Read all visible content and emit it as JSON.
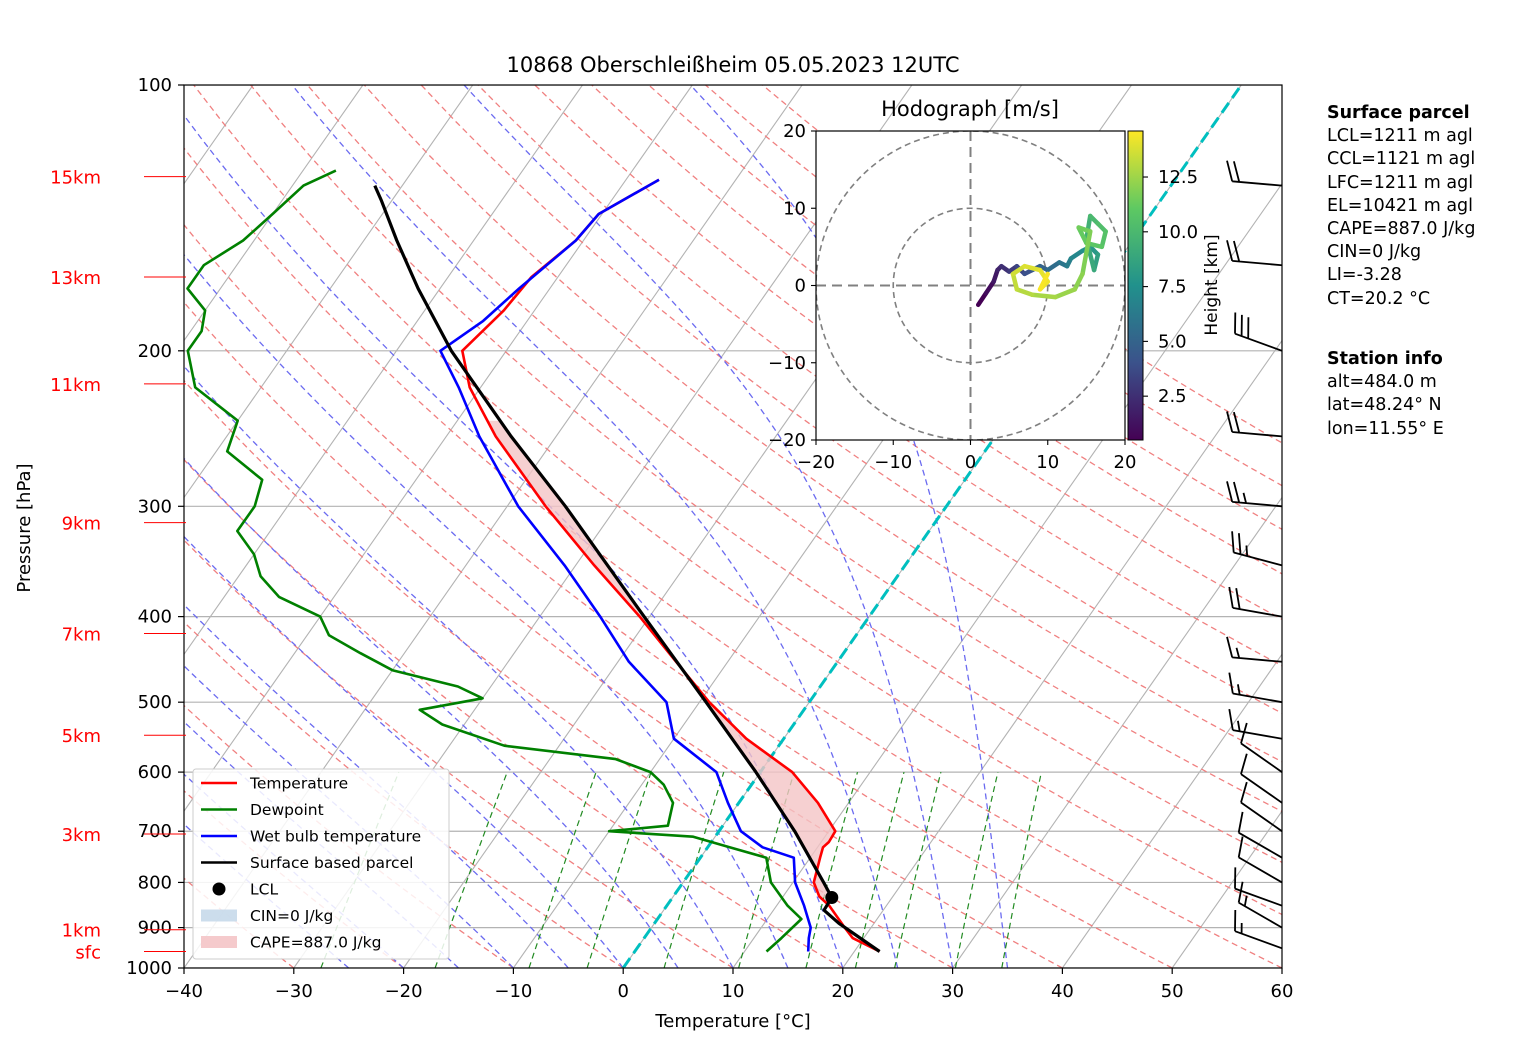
{
  "title": "10868 Oberschleißheim 05.05.2023 12UTC",
  "colors": {
    "temperature": "#ff0000",
    "dewpoint": "#008000",
    "wetbulb": "#0000ff",
    "parcel": "#000000",
    "dry_adiabat": "#f08080",
    "moist_adiabat": "#6b6bf0",
    "mixing_ratio": "#228b22",
    "freezing_isotherm": "#00bfbf",
    "cape_fill": "#f4c4c6",
    "cin_fill": "#c6d9ea",
    "height_label": "#ff0000"
  },
  "chart_data": {
    "type": "line",
    "subtype": "skew-t log-p",
    "xlabel": "Temperature [°C]",
    "ylabel": "Pressure [hPa]",
    "xlim": [
      -40,
      60
    ],
    "ylim": [
      1000,
      100
    ],
    "y_scale": "log",
    "x_ticks": [
      "−40",
      "−30",
      "−20",
      "−10",
      "0",
      "10",
      "20",
      "30",
      "40",
      "50",
      "60"
    ],
    "y_ticks": [
      "100",
      "200",
      "300",
      "400",
      "500",
      "600",
      "700",
      "800",
      "900",
      "1000"
    ],
    "height_labels": [
      {
        "label": "15km",
        "p": 127
      },
      {
        "label": "13km",
        "p": 165
      },
      {
        "label": "11km",
        "p": 218
      },
      {
        "label": "9km",
        "p": 313
      },
      {
        "label": "7km",
        "p": 418
      },
      {
        "label": "5km",
        "p": 545
      },
      {
        "label": "3km",
        "p": 705
      },
      {
        "label": "1km",
        "p": 905
      },
      {
        "label": "sfc",
        "p": 958
      }
    ],
    "legend": {
      "position": "bottom-left",
      "entries": [
        "Temperature",
        "Dewpoint",
        "Wet bulb temperature",
        "Surface based parcel",
        "LCL",
        "CIN=0 J/kg",
        "CAPE=887.0 J/kg"
      ]
    },
    "series": [
      {
        "name": "Temperature",
        "points": [
          [
            958,
            22.3
          ],
          [
            925,
            19.0
          ],
          [
            900,
            17.6
          ],
          [
            850,
            14.8
          ],
          [
            830,
            13.3
          ],
          [
            800,
            11.9
          ],
          [
            750,
            10.9
          ],
          [
            730,
            10.5
          ],
          [
            720,
            10.7
          ],
          [
            700,
            10.6
          ],
          [
            650,
            7.2
          ],
          [
            600,
            2.9
          ],
          [
            550,
            -3.4
          ],
          [
            500,
            -9.1
          ],
          [
            450,
            -14.7
          ],
          [
            400,
            -20.9
          ],
          [
            350,
            -28.3
          ],
          [
            300,
            -36.5
          ],
          [
            250,
            -45.5
          ],
          [
            220,
            -51.0
          ],
          [
            200,
            -54.0
          ],
          [
            180,
            -52.8
          ],
          [
            165,
            -52.4
          ],
          [
            150,
            -50.7
          ],
          [
            140,
            -50.3
          ],
          [
            128,
            -47.0
          ]
        ]
      },
      {
        "name": "Dewpoint",
        "points": [
          [
            958,
            12.0
          ],
          [
            925,
            12.5
          ],
          [
            880,
            13.1
          ],
          [
            850,
            11.0
          ],
          [
            800,
            8.0
          ],
          [
            750,
            6.0
          ],
          [
            730,
            2.0
          ],
          [
            710,
            -2.0
          ],
          [
            700,
            -10.0
          ],
          [
            690,
            -5.0
          ],
          [
            650,
            -6.0
          ],
          [
            620,
            -8.0
          ],
          [
            600,
            -10.0
          ],
          [
            580,
            -14.0
          ],
          [
            560,
            -25.0
          ],
          [
            530,
            -32.0
          ],
          [
            510,
            -35.0
          ],
          [
            495,
            -30.0
          ],
          [
            480,
            -33.0
          ],
          [
            460,
            -40.0
          ],
          [
            440,
            -44.0
          ],
          [
            420,
            -48.0
          ],
          [
            400,
            -50.0
          ],
          [
            380,
            -55.0
          ],
          [
            360,
            -58.0
          ],
          [
            340,
            -60.0
          ],
          [
            320,
            -63.0
          ],
          [
            300,
            -63.0
          ],
          [
            280,
            -64.0
          ],
          [
            260,
            -69.0
          ],
          [
            240,
            -70.0
          ],
          [
            220,
            -76.0
          ],
          [
            200,
            -79.0
          ],
          [
            190,
            -79.0
          ],
          [
            180,
            -80.0
          ],
          [
            170,
            -83.0
          ],
          [
            160,
            -83.0
          ],
          [
            150,
            -81.0
          ],
          [
            140,
            -80.0
          ],
          [
            130,
            -79.0
          ],
          [
            125,
            -77.0
          ]
        ]
      },
      {
        "name": "Wet bulb temperature",
        "points": [
          [
            958,
            15.8
          ],
          [
            925,
            15.0
          ],
          [
            900,
            14.5
          ],
          [
            850,
            12.5
          ],
          [
            800,
            10.2
          ],
          [
            750,
            8.5
          ],
          [
            730,
            5.0
          ],
          [
            700,
            2.0
          ],
          [
            650,
            -1.0
          ],
          [
            600,
            -4.0
          ],
          [
            550,
            -10.0
          ],
          [
            500,
            -13.0
          ],
          [
            450,
            -19.0
          ],
          [
            400,
            -24.5
          ],
          [
            350,
            -31.0
          ],
          [
            300,
            -39.0
          ],
          [
            250,
            -47.0
          ],
          [
            220,
            -52.0
          ],
          [
            200,
            -56.0
          ],
          [
            185,
            -54.0
          ],
          [
            170,
            -52.8
          ],
          [
            150,
            -50.7
          ],
          [
            140,
            -50.3
          ],
          [
            128,
            -47.0
          ]
        ]
      },
      {
        "name": "Surface based parcel",
        "points": [
          [
            958,
            22.3
          ],
          [
            890,
            16.8
          ],
          [
            860,
            14.6
          ],
          [
            832,
            14.5
          ],
          [
            800,
            12.8
          ],
          [
            700,
            6.9
          ],
          [
            600,
            -0.4
          ],
          [
            500,
            -9.4
          ],
          [
            400,
            -20.5
          ],
          [
            300,
            -34.7
          ],
          [
            250,
            -44.1
          ],
          [
            200,
            -55.0
          ],
          [
            170,
            -62.0
          ],
          [
            150,
            -67.0
          ],
          [
            135,
            -71.0
          ],
          [
            130,
            -72.5
          ]
        ]
      }
    ],
    "lcl": {
      "p": 832,
      "t": 14.5
    },
    "cape": "887.0 J/kg",
    "cin": "0 J/kg",
    "barbs": [
      {
        "p": 950,
        "speed_kt": 15,
        "dir": 250
      },
      {
        "p": 900,
        "speed_kt": 15,
        "dir": 240
      },
      {
        "p": 850,
        "speed_kt": 10,
        "dir": 250
      },
      {
        "p": 800,
        "speed_kt": 10,
        "dir": 240
      },
      {
        "p": 750,
        "speed_kt": 10,
        "dir": 240
      },
      {
        "p": 700,
        "speed_kt": 10,
        "dir": 235
      },
      {
        "p": 650,
        "speed_kt": 10,
        "dir": 235
      },
      {
        "p": 600,
        "speed_kt": 10,
        "dir": 235
      },
      {
        "p": 550,
        "speed_kt": 15,
        "dir": 260
      },
      {
        "p": 500,
        "speed_kt": 15,
        "dir": 260
      },
      {
        "p": 450,
        "speed_kt": 15,
        "dir": 265
      },
      {
        "p": 400,
        "speed_kt": 20,
        "dir": 260
      },
      {
        "p": 350,
        "speed_kt": 25,
        "dir": 255
      },
      {
        "p": 300,
        "speed_kt": 25,
        "dir": 265
      },
      {
        "p": 250,
        "speed_kt": 20,
        "dir": 265
      },
      {
        "p": 200,
        "speed_kt": 30,
        "dir": 250
      },
      {
        "p": 160,
        "speed_kt": 20,
        "dir": 265
      },
      {
        "p": 130,
        "speed_kt": 20,
        "dir": 265
      }
    ],
    "hodograph": {
      "title": "Hodograph [m/s]",
      "xlim": [
        -20,
        20
      ],
      "ylim": [
        -20,
        20
      ],
      "ticks": [
        "−20",
        "−10",
        "0",
        "10",
        "20"
      ],
      "rings": [
        10,
        20
      ],
      "colorbar_label": "Height [km]",
      "colorbar_ticks": [
        "2.5",
        "5.0",
        "7.5",
        "10.0",
        "12.5"
      ],
      "colorbar_range": [
        0.5,
        14.6
      ],
      "trace": [
        {
          "u": 1.0,
          "v": -2.5,
          "h": 0.5
        },
        {
          "u": 2.0,
          "v": -1.0,
          "h": 1.0
        },
        {
          "u": 3.0,
          "v": 0.5,
          "h": 1.5
        },
        {
          "u": 3.5,
          "v": 2.0,
          "h": 2.0
        },
        {
          "u": 4.0,
          "v": 2.5,
          "h": 2.5
        },
        {
          "u": 5.0,
          "v": 1.8,
          "h": 3.0
        },
        {
          "u": 6.0,
          "v": 2.5,
          "h": 3.5
        },
        {
          "u": 7.0,
          "v": 1.5,
          "h": 4.0
        },
        {
          "u": 8.0,
          "v": 2.0,
          "h": 4.5
        },
        {
          "u": 9.0,
          "v": 2.5,
          "h": 5.0
        },
        {
          "u": 10.0,
          "v": 2.0,
          "h": 5.5
        },
        {
          "u": 11.5,
          "v": 3.0,
          "h": 6.0
        },
        {
          "u": 12.5,
          "v": 2.5,
          "h": 6.5
        },
        {
          "u": 13.0,
          "v": 3.5,
          "h": 7.0
        },
        {
          "u": 14.5,
          "v": 4.5,
          "h": 7.5
        },
        {
          "u": 15.5,
          "v": 5.0,
          "h": 8.0
        },
        {
          "u": 16.5,
          "v": 4.0,
          "h": 8.5
        },
        {
          "u": 16.0,
          "v": 2.0,
          "h": 9.0
        },
        {
          "u": 15.0,
          "v": 6.0,
          "h": 9.5
        },
        {
          "u": 15.5,
          "v": 9.0,
          "h": 10.0
        },
        {
          "u": 16.5,
          "v": 8.0,
          "h": 10.3
        },
        {
          "u": 17.5,
          "v": 7.0,
          "h": 10.6
        },
        {
          "u": 17.0,
          "v": 5.0,
          "h": 10.9
        },
        {
          "u": 15.0,
          "v": 5.5,
          "h": 11.2
        },
        {
          "u": 14.0,
          "v": 7.5,
          "h": 11.5
        },
        {
          "u": 15.5,
          "v": 7.0,
          "h": 11.8
        },
        {
          "u": 14.5,
          "v": 1.5,
          "h": 12.1
        },
        {
          "u": 13.5,
          "v": -0.5,
          "h": 12.4
        },
        {
          "u": 11.0,
          "v": -1.5,
          "h": 12.7
        },
        {
          "u": 8.0,
          "v": -1.2,
          "h": 13.0
        },
        {
          "u": 6.0,
          "v": -0.5,
          "h": 13.3
        },
        {
          "u": 5.5,
          "v": 1.5,
          "h": 13.6
        },
        {
          "u": 7.0,
          "v": 2.5,
          "h": 13.9
        },
        {
          "u": 9.0,
          "v": 2.0,
          "h": 14.1
        },
        {
          "u": 10.0,
          "v": 0.5,
          "h": 14.3
        },
        {
          "u": 9.0,
          "v": -0.5,
          "h": 14.5
        },
        {
          "u": 10.0,
          "v": 1.5,
          "h": 14.6
        }
      ]
    }
  },
  "surface_parcel": {
    "heading": "Surface parcel",
    "lines": [
      "LCL=1211 m agl",
      "CCL=1121 m agl",
      "LFC=1211 m agl",
      "EL=10421 m agl",
      "CAPE=887.0 J/kg",
      "CIN=0 J/kg",
      "LI=-3.28",
      "CT=20.2 °C"
    ]
  },
  "station_info": {
    "heading": "Station info",
    "lines": [
      "alt=484.0 m",
      "lat=48.24° N",
      "lon=11.55° E"
    ]
  }
}
